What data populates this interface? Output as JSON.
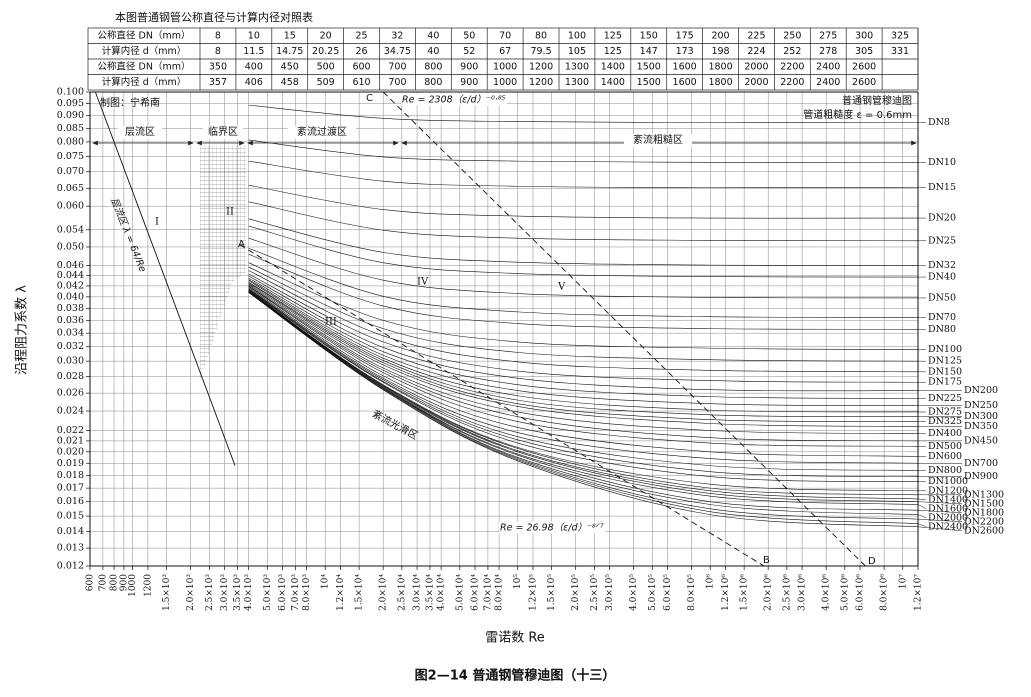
{
  "table": {
    "title": "本图普通钢管公称直径与计算内径对照表",
    "rows": [
      [
        "公称直径 DN（mm）",
        "8",
        "10",
        "15",
        "20",
        "25",
        "32",
        "40",
        "50",
        "70",
        "80",
        "100",
        "125",
        "150",
        "175",
        "200",
        "225",
        "250",
        "275",
        "300",
        "325"
      ],
      [
        "计算内径 d（mm）",
        "8",
        "11.5",
        "14.75",
        "20.25",
        "26",
        "34.75",
        "40",
        "52",
        "67",
        "79.5",
        "105",
        "125",
        "147",
        "173",
        "198",
        "224",
        "252",
        "278",
        "305",
        "331"
      ],
      [
        "公称直径 DN（mm）",
        "350",
        "400",
        "450",
        "500",
        "600",
        "700",
        "800",
        "900",
        "1000",
        "1200",
        "1300",
        "1400",
        "1500",
        "1600",
        "1800",
        "2000",
        "2200",
        "2400",
        "2600"
      ],
      [
        "计算内径 d（mm）",
        "357",
        "406",
        "458",
        "509",
        "610",
        "700",
        "800",
        "900",
        "1000",
        "1200",
        "1300",
        "1400",
        "1500",
        "1600",
        "1800",
        "2000",
        "2200",
        "2400",
        "2600"
      ]
    ]
  },
  "chart_data": {
    "type": "line",
    "title": "普通钢管穆迪图",
    "subtitle": "管道粗糙度 ε = 0.6mm",
    "caption": "图2—14  普通钢管穆迪图（十三）",
    "x_label": "雷诺数 Re",
    "y_label": "沿程阻力系数 λ",
    "log_x": true,
    "log_y": true,
    "grid": true,
    "color": "#111111",
    "xlim": [
      600,
      12000000
    ],
    "ylim": [
      0.012,
      0.1
    ],
    "xticks": [
      600,
      700,
      800,
      900,
      1000,
      1200,
      {
        "value": 1500,
        "label": "1.5×10³"
      },
      {
        "value": 2000,
        "label": "2.0×10³"
      },
      {
        "value": 2500,
        "label": "2.5×10³"
      },
      {
        "value": 3000,
        "label": "3.0×10³"
      },
      {
        "value": 3500,
        "label": "3.5×10³"
      },
      {
        "value": 4000,
        "label": "4.0×10³"
      },
      {
        "value": 5000,
        "label": "5.0×10³"
      },
      {
        "value": 6000,
        "label": "6.0×10³"
      },
      {
        "value": 7000,
        "label": "7.0×10³"
      },
      {
        "value": 8000,
        "label": "8.0×10³"
      },
      {
        "value": 10000,
        "label": "10⁴"
      },
      {
        "value": 12000,
        "label": "1.2×10⁴"
      },
      {
        "value": 15000,
        "label": "1.5×10⁴"
      },
      {
        "value": 20000,
        "label": "2.0×10⁴"
      },
      {
        "value": 25000,
        "label": "2.5×10⁴"
      },
      {
        "value": 30000,
        "label": "3.0×10⁴"
      },
      {
        "value": 35000,
        "label": "3.5×10⁴"
      },
      {
        "value": 40000,
        "label": "4.0×10⁴"
      },
      {
        "value": 50000,
        "label": "5.0×10⁴"
      },
      {
        "value": 60000,
        "label": "6.0×10⁴"
      },
      {
        "value": 70000,
        "label": "7.0×10⁴"
      },
      {
        "value": 80000,
        "label": "8.0×10⁴"
      },
      {
        "value": 100000,
        "label": "10⁵"
      },
      {
        "value": 120000,
        "label": "1.2×10⁵"
      },
      {
        "value": 150000,
        "label": "1.5×10⁵"
      },
      {
        "value": 200000,
        "label": "2.0×10⁵"
      },
      {
        "value": 250000,
        "label": "2.5×10⁵"
      },
      {
        "value": 300000,
        "label": "3.0×10⁵"
      },
      {
        "value": 400000,
        "label": "4.0×10⁵"
      },
      {
        "value": 500000,
        "label": "5.0×10⁵"
      },
      {
        "value": 600000,
        "label": "6.0×10⁵"
      },
      {
        "value": 800000,
        "label": "8.0×10⁵"
      },
      {
        "value": 1000000,
        "label": "10⁶"
      },
      {
        "value": 1200000,
        "label": "1.2×10⁶"
      },
      {
        "value": 1500000,
        "label": "1.5×10⁶"
      },
      {
        "value": 2000000,
        "label": "2.0×10⁶"
      },
      {
        "value": 2500000,
        "label": "2.5×10⁶"
      },
      {
        "value": 3000000,
        "label": "3.0×10⁶"
      },
      {
        "value": 4000000,
        "label": "4.0×10⁶"
      },
      {
        "value": 5000000,
        "label": "5.0×10⁶"
      },
      {
        "value": 6000000,
        "label": "6.0×10⁶"
      },
      {
        "value": 8000000,
        "label": "8.0×10⁶"
      },
      {
        "value": 10000000,
        "label": "10⁷"
      },
      {
        "value": 12000000,
        "label": "1.2×10⁷"
      }
    ],
    "yticks": [
      {
        "value": 0.1,
        "label": "0.100"
      },
      0.095,
      {
        "value": 0.09,
        "label": "0.090"
      },
      0.085,
      {
        "value": 0.08,
        "label": "0.080"
      },
      0.075,
      {
        "value": 0.07,
        "label": "0.070"
      },
      0.065,
      {
        "value": 0.06,
        "label": "0.060"
      },
      0.054,
      {
        "value": 0.05,
        "label": "0.050"
      },
      0.046,
      0.044,
      0.042,
      {
        "value": 0.04,
        "label": "0.040"
      },
      0.038,
      0.036,
      0.034,
      0.032,
      {
        "value": 0.03,
        "label": "0.030"
      },
      0.028,
      0.026,
      0.024,
      0.022,
      0.021,
      {
        "value": 0.02,
        "label": "0.020"
      },
      0.019,
      0.018,
      0.017,
      0.016,
      0.015,
      0.014,
      0.013,
      0.012
    ],
    "annotations": [
      "制图：宁希南",
      "层流区",
      "临界区",
      "紊流过渡区",
      "紊流粗糙区",
      "紊流光滑区",
      "I",
      "II",
      "III",
      "IV",
      "V",
      "A",
      "B",
      "C",
      "D"
    ],
    "x": [
      4000,
      20000,
      100000,
      1000000,
      12000000
    ],
    "series": [
      {
        "name": "DN8",
        "values": [
          0.0943,
          0.0889,
          0.0876,
          0.0872,
          0.0872
        ]
      },
      {
        "name": "DN10",
        "values": [
          0.0807,
          0.0748,
          0.0734,
          0.073,
          0.073
        ]
      },
      {
        "name": "DN15",
        "values": [
          0.0734,
          0.0671,
          0.0656,
          0.0652,
          0.0652
        ]
      },
      {
        "name": "DN20",
        "values": [
          0.0659,
          0.0591,
          0.0574,
          0.0569,
          0.0569
        ]
      },
      {
        "name": "DN25",
        "values": [
          0.0612,
          0.0539,
          0.052,
          0.0515,
          0.0514
        ]
      },
      {
        "name": "DN32",
        "values": [
          0.0567,
          0.0488,
          0.0467,
          0.0461,
          0.046
        ]
      },
      {
        "name": "DN40",
        "values": [
          0.0549,
          0.0466,
          0.0444,
          0.0438,
          0.0437
        ]
      },
      {
        "name": "DN50",
        "values": [
          0.052,
          0.0431,
          0.0406,
          0.0399,
          0.0398
        ]
      },
      {
        "name": "DN70",
        "values": [
          0.0497,
          0.0401,
          0.0374,
          0.0366,
          0.0365
        ]
      },
      {
        "name": "DN80",
        "values": [
          0.0484,
          0.0384,
          0.0355,
          0.0347,
          0.0346
        ]
      },
      {
        "name": "DN100",
        "values": [
          0.0466,
          0.036,
          0.0327,
          0.0318,
          0.0316
        ]
      },
      {
        "name": "DN125",
        "values": [
          0.0457,
          0.0347,
          0.0312,
          0.0302,
          0.03
        ]
      },
      {
        "name": "DN150",
        "values": [
          0.045,
          0.0336,
          0.0299,
          0.0288,
          0.0286
        ]
      },
      {
        "name": "DN175",
        "values": [
          0.0443,
          0.0327,
          0.0287,
          0.0275,
          0.0273
        ]
      },
      {
        "name": "DN200",
        "values": [
          0.0439,
          0.0319,
          0.0278,
          0.0264,
          0.0263
        ]
      },
      {
        "name": "DN225",
        "values": [
          0.0435,
          0.0313,
          0.027,
          0.0256,
          0.0254
        ]
      },
      {
        "name": "DN250",
        "values": [
          0.0432,
          0.0308,
          0.0263,
          0.0248,
          0.0246
        ]
      },
      {
        "name": "DN275",
        "values": [
          0.043,
          0.0304,
          0.0257,
          0.0241,
          0.0239
        ]
      },
      {
        "name": "DN300",
        "values": [
          0.0427,
          0.0301,
          0.0252,
          0.0236,
          0.0234
        ]
      },
      {
        "name": "DN325",
        "values": [
          0.0426,
          0.0298,
          0.0248,
          0.0231,
          0.0229
        ]
      },
      {
        "name": "DN350",
        "values": [
          0.0424,
          0.0295,
          0.0245,
          0.0227,
          0.0224
        ]
      },
      {
        "name": "DN400",
        "values": [
          0.0422,
          0.0291,
          0.0239,
          0.022,
          0.0217
        ]
      },
      {
        "name": "DN450",
        "values": [
          0.042,
          0.0288,
          0.0234,
          0.0213,
          0.021
        ]
      },
      {
        "name": "DN500",
        "values": [
          0.0419,
          0.0285,
          0.0229,
          0.0208,
          0.0205
        ]
      },
      {
        "name": "DN600",
        "values": [
          0.0417,
          0.0281,
          0.0223,
          0.02,
          0.0196
        ]
      },
      {
        "name": "DN700",
        "values": [
          0.0415,
          0.0278,
          0.0218,
          0.0194,
          0.019
        ]
      },
      {
        "name": "DN800",
        "values": [
          0.0414,
          0.0276,
          0.0214,
          0.0188,
          0.0184
        ]
      },
      {
        "name": "DN900",
        "values": [
          0.0413,
          0.0274,
          0.0211,
          0.0183,
          0.0179
        ]
      },
      {
        "name": "DN1000",
        "values": [
          0.0412,
          0.0273,
          0.0208,
          0.0179,
          0.0175
        ]
      },
      {
        "name": "DN1200",
        "values": [
          0.0411,
          0.027,
          0.0204,
          0.0173,
          0.0168
        ]
      },
      {
        "name": "DN1300",
        "values": [
          0.0411,
          0.0269,
          0.0203,
          0.017,
          0.0165
        ]
      },
      {
        "name": "DN1400",
        "values": [
          0.041,
          0.0269,
          0.0201,
          0.0168,
          0.0162
        ]
      },
      {
        "name": "DN1500",
        "values": [
          0.041,
          0.0268,
          0.02,
          0.0166,
          0.016
        ]
      },
      {
        "name": "DN1600",
        "values": [
          0.041,
          0.0267,
          0.0198,
          0.0164,
          0.0158
        ]
      },
      {
        "name": "DN1800",
        "values": [
          0.0409,
          0.0266,
          0.0197,
          0.016,
          0.0154
        ]
      },
      {
        "name": "DN2000",
        "values": [
          0.0409,
          0.0266,
          0.0195,
          0.0158,
          0.0151
        ]
      },
      {
        "name": "DN2200",
        "values": [
          0.0408,
          0.0265,
          0.0194,
          0.0155,
          0.0148
        ]
      },
      {
        "name": "DN2400",
        "values": [
          0.0408,
          0.0264,
          0.0193,
          0.0153,
          0.0145
        ]
      },
      {
        "name": "DN2600",
        "values": [
          0.0408,
          0.0264,
          0.0192,
          0.0151,
          0.0143
        ]
      },
      {
        "name": "层流区 λ = 64/Re",
        "x": [
          640,
          3400
        ],
        "values": [
          0.1,
          0.0188
        ]
      },
      {
        "name": "Re = 2308（ε/d）⁻⁰·⁸⁵",
        "x": [
          20000,
          6400000
        ],
        "values": [
          0.1,
          0.012
        ],
        "dashed": true
      },
      {
        "name": "Re = 26.98（ε/d）⁻⁸ᐟ⁷",
        "x": [
          3600,
          1900000
        ],
        "values": [
          0.0505,
          0.012
        ],
        "dashed": true
      }
    ]
  }
}
